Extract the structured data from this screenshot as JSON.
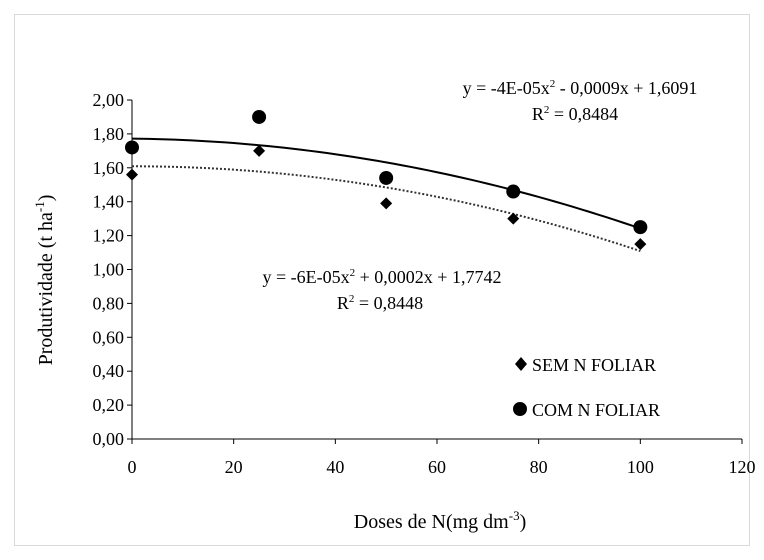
{
  "chart_data": {
    "type": "scatter",
    "xlabel": "Doses de N(mg dm",
    "xlabel_sup": "-3",
    "xlabel_close": ")",
    "ylabel": "Produtividade (t ha",
    "ylabel_sup": "-1",
    "ylabel_close": ")",
    "xlim": [
      0,
      120
    ],
    "ylim": [
      0,
      2.0
    ],
    "x_ticks": [
      0,
      20,
      40,
      60,
      80,
      100,
      120
    ],
    "x_tick_labels": [
      "0",
      "20",
      "40",
      "60",
      "80",
      "100",
      "120"
    ],
    "y_ticks": [
      0,
      0.2,
      0.4,
      0.6,
      0.8,
      1.0,
      1.2,
      1.4,
      1.6,
      1.8,
      2.0
    ],
    "y_tick_labels": [
      "0,00",
      "0,20",
      "0,40",
      "0,60",
      "0,80",
      "1,00",
      "1,20",
      "1,40",
      "1,60",
      "1,80",
      "2,00"
    ],
    "grid": false,
    "legend_position": "bottom-right",
    "series": [
      {
        "name": "SEM N FOLIAR",
        "marker": "diamond",
        "x": [
          0,
          25,
          50,
          75,
          100
        ],
        "y": [
          1.56,
          1.7,
          1.39,
          1.3,
          1.15
        ],
        "trend": {
          "type": "quadratic",
          "a": -5e-05,
          "b": 0.0,
          "c": 1.609,
          "line_style": "dotted"
        }
      },
      {
        "name": "COM N FOLIAR",
        "marker": "circle",
        "x": [
          0,
          25,
          50,
          75,
          100
        ],
        "y": [
          1.72,
          1.9,
          1.54,
          1.46,
          1.25
        ],
        "trend": {
          "type": "quadratic",
          "a": -5e-05,
          "b": -0.0003,
          "c": 1.772,
          "line_style": "solid"
        }
      }
    ],
    "annotations": [
      {
        "id": "eq_top",
        "line1_pre": "y = -4E-05x",
        "line1_sup": "2",
        "line1_post": " - 0,0009x + 1,6091",
        "line2_pre": "R",
        "line2_sup": "2",
        "line2_post": " = 0,8484"
      },
      {
        "id": "eq_mid",
        "line1_pre": "y = -6E-05x",
        "line1_sup": "2",
        "line1_post": " + 0,0002x + 1,7742",
        "line2_pre": "R",
        "line2_sup": "2",
        "line2_post": " = 0,8448"
      }
    ]
  }
}
